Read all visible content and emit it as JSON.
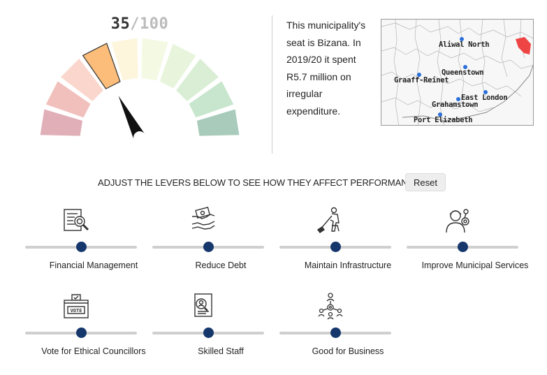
{
  "score": {
    "value": "35",
    "max": "/100",
    "value_num": 35
  },
  "gauge": {
    "segment_colors": [
      "#e0afb8",
      "#f1c0bc",
      "#fad6cd",
      "#fbbd79",
      "#fdf5dc",
      "#f3f9e3",
      "#e8f5dc",
      "#d9eed5",
      "#c8e6cd",
      "#a8cbbb"
    ],
    "highlight_index": 3
  },
  "info": {
    "text": "This municipality's seat is Bizana. In 2019/20 it spent R5.7 million on irregular expenditure."
  },
  "map": {
    "cities": [
      {
        "name": "Aliwal North"
      },
      {
        "name": "Queenstown"
      },
      {
        "name": "Graaff-Reinet"
      },
      {
        "name": "East London"
      },
      {
        "name": "Grahamstown"
      },
      {
        "name": "Port Elizabeth"
      }
    ],
    "highlight_color": "#ee4444"
  },
  "controls": {
    "prompt": "ADJUST THE LEVERS BELOW TO SEE HOW THEY AFFECT PERFORMANCE",
    "reset_label": "Reset"
  },
  "levers": [
    {
      "label": "Financial Management",
      "icon": "document-magnifier-icon",
      "value": 0.5
    },
    {
      "label": "Reduce Debt",
      "icon": "money-hands-icon",
      "value": 0.5
    },
    {
      "label": "Maintain Infrastructure",
      "icon": "worker-shovel-icon",
      "value": 0.5
    },
    {
      "label": "Improve Municipal Services",
      "icon": "service-worker-gear-icon",
      "value": 0.5
    },
    {
      "label": "Vote for Ethical Councillors",
      "icon": "ballot-box-icon",
      "value": 0.5
    },
    {
      "label": "Skilled Staff",
      "icon": "resume-icon",
      "value": 0.5
    },
    {
      "label": "Good for Business",
      "icon": "business-network-icon",
      "value": 0.5
    }
  ]
}
